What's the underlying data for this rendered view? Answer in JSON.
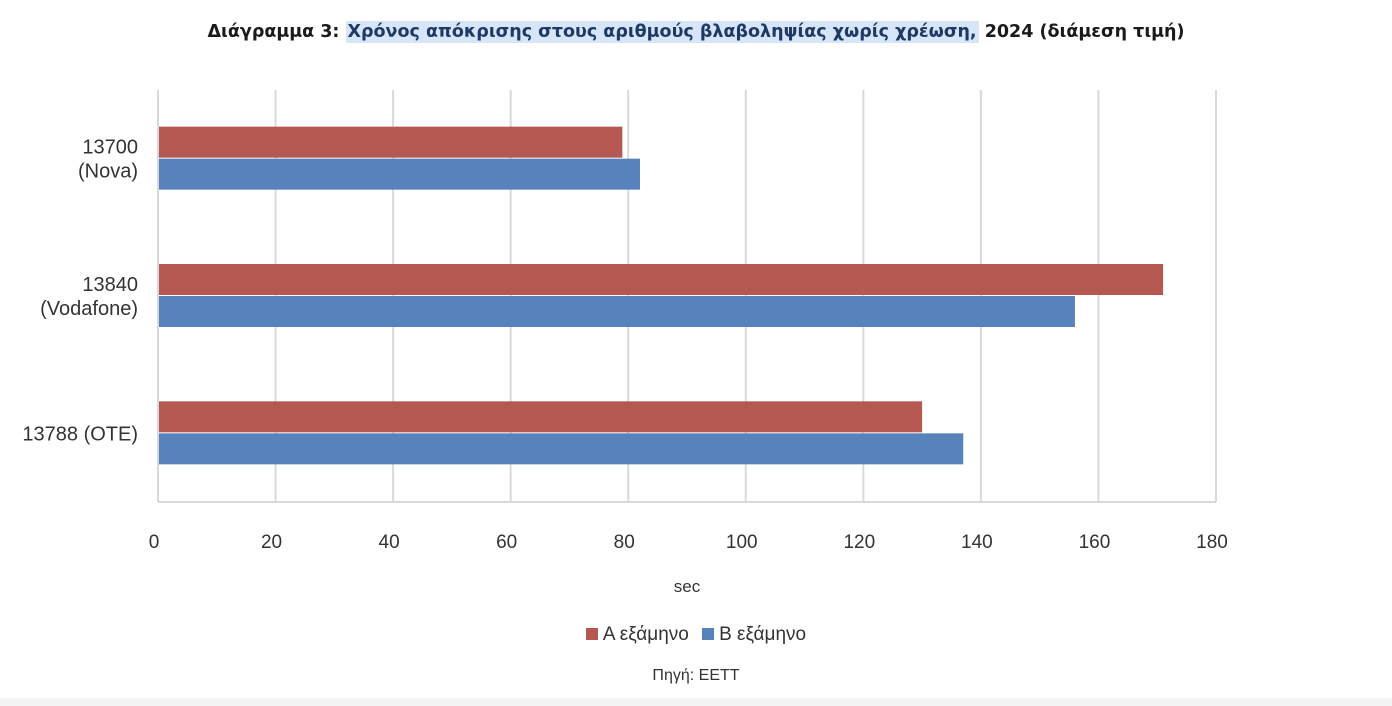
{
  "chart_data": {
    "type": "bar",
    "orientation": "horizontal",
    "title_prefix": "Διάγραμμα 3:",
    "title_highlight": "Χρόνος απόκρισης στους αριθμούς βλαβοληψίας χωρίς χρέωση,",
    "title_suffix": "2024 (διάμεση τιμή)",
    "categories": [
      [
        "13700",
        "(Nova)"
      ],
      [
        "13840",
        "(Vodafone)"
      ],
      [
        "13788 (OTE)"
      ]
    ],
    "series": [
      {
        "name": "Α εξάμηνο",
        "color": "#b45851",
        "values": [
          79,
          171,
          130
        ]
      },
      {
        "name": "Β εξάμηνο",
        "color": "#5882bc",
        "values": [
          82,
          156,
          137
        ]
      }
    ],
    "xlim": [
      0,
      180
    ],
    "xticks": [
      0,
      20,
      40,
      60,
      80,
      100,
      120,
      140,
      160,
      180
    ],
    "xlabel": "sec",
    "grid": true,
    "legend_position": "bottom",
    "source": "Πηγή: ΕΕΤΤ"
  }
}
